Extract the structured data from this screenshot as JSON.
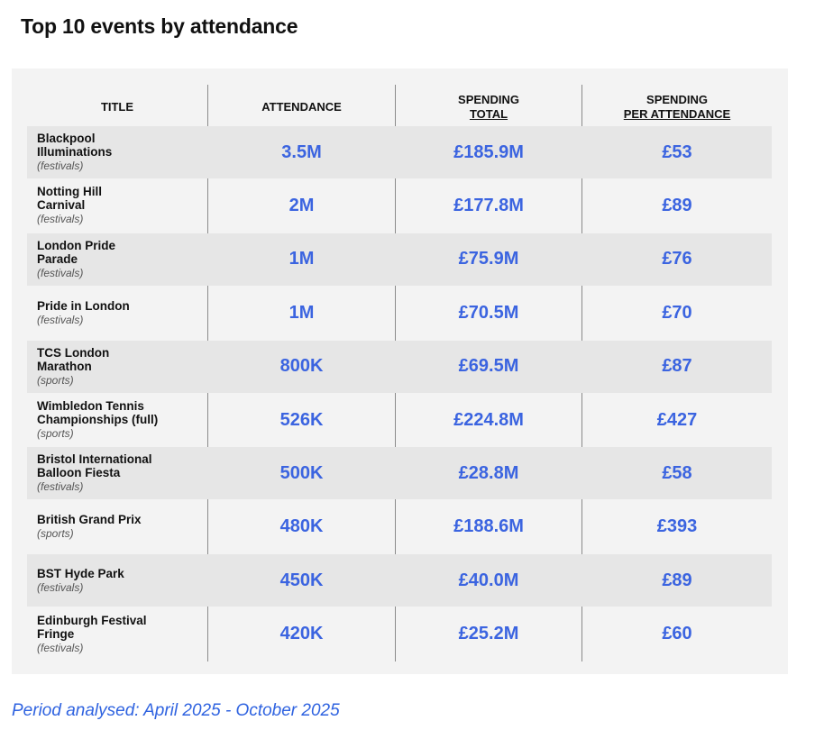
{
  "title": "Top 10 events by attendance",
  "footnote": "Period analysed: April 2025 - October 2025",
  "headers": {
    "title": "TITLE",
    "attendance": "ATTENDANCE",
    "spending_line1": "SPENDING",
    "spending_line2": "TOTAL",
    "per_line1": "SPENDING",
    "per_line2": "PER ATTENDANCE"
  },
  "colors": {
    "value_text": "#3b64e0",
    "footnote_text": "#2f63e0",
    "panel_bg": "#f3f3f3",
    "row_shade": "#e6e6e6"
  },
  "chart_data": {
    "type": "table",
    "title": "Top 10 events by attendance",
    "columns": [
      "TITLE",
      "ATTENDANCE",
      "SPENDING TOTAL",
      "SPENDING PER ATTENDANCE"
    ],
    "rows": [
      {
        "name": "Blackpool Illuminations",
        "category": "(festivals)",
        "attendance": "3.5M",
        "spending_total": "£185.9M",
        "per_attendance": "£53"
      },
      {
        "name": "Notting Hill Carnival",
        "category": "(festivals)",
        "attendance": "2M",
        "spending_total": "£177.8M",
        "per_attendance": "£89"
      },
      {
        "name": "London Pride Parade",
        "category": "(festivals)",
        "attendance": "1M",
        "spending_total": "£75.9M",
        "per_attendance": "£76"
      },
      {
        "name": "Pride in London",
        "category": "(festivals)",
        "attendance": "1M",
        "spending_total": "£70.5M",
        "per_attendance": "£70"
      },
      {
        "name": "TCS London Marathon",
        "category": "(sports)",
        "attendance": "800K",
        "spending_total": "£69.5M",
        "per_attendance": "£87"
      },
      {
        "name": "Wimbledon Tennis Championships (full)",
        "category": "(sports)",
        "attendance": "526K",
        "spending_total": "£224.8M",
        "per_attendance": "£427"
      },
      {
        "name": "Bristol International Balloon Fiesta",
        "category": "(festivals)",
        "attendance": "500K",
        "spending_total": "£28.8M",
        "per_attendance": "£58"
      },
      {
        "name": "British Grand Prix",
        "category": "(sports)",
        "attendance": "480K",
        "spending_total": "£188.6M",
        "per_attendance": "£393"
      },
      {
        "name": "BST Hyde Park",
        "category": "(festivals)",
        "attendance": "450K",
        "spending_total": "£40.0M",
        "per_attendance": "£89"
      },
      {
        "name": "Edinburgh Festival Fringe",
        "category": "(festivals)",
        "attendance": "420K",
        "spending_total": "£25.2M",
        "per_attendance": "£60"
      }
    ]
  }
}
